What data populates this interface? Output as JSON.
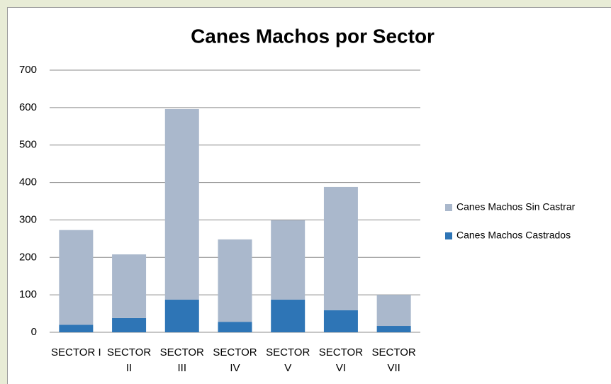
{
  "chart_data": {
    "type": "bar",
    "stacked": true,
    "title": "Canes Machos por Sector",
    "categories": [
      "SECTOR I",
      "SECTOR II",
      "SECTOR III",
      "SECTOR IV",
      "SECTOR V",
      "SECTOR VI",
      "SECTOR VII"
    ],
    "series": [
      {
        "name": "Canes Machos Castrados",
        "color": "#2e75b6",
        "values": [
          20,
          38,
          87,
          28,
          87,
          59,
          17
        ]
      },
      {
        "name": "Canes Machos Sin Castrar",
        "color": "#aab8cc",
        "values": [
          253,
          170,
          509,
          220,
          212,
          329,
          83
        ]
      }
    ],
    "ylim": [
      0,
      700
    ],
    "yticks": [
      0,
      100,
      200,
      300,
      400,
      500,
      600,
      700
    ],
    "grid": true,
    "legend": "right"
  }
}
